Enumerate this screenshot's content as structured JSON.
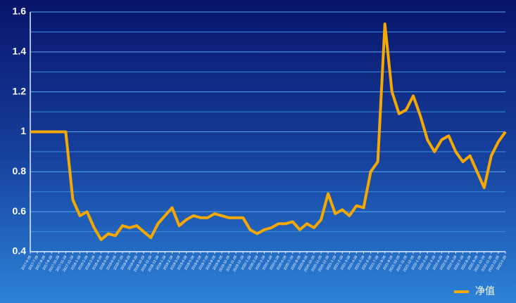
{
  "chart_data": {
    "type": "line",
    "x": [
      "2017-6-28",
      "2017-7-28",
      "2017-8-28",
      "2017-9-28",
      "2017-10-28",
      "2017-11-28",
      "2017-12-28",
      "2018-1-28",
      "2018-2-28",
      "2018-3-28",
      "2018-4-28",
      "2018-5-28",
      "2018-6-28",
      "2018-7-28",
      "2018-8-28",
      "2018-9-28",
      "2018-10-28",
      "2018-11-28",
      "2018-12-28",
      "2019-1-28",
      "2019-2-28",
      "2019-3-28",
      "2019-4-28",
      "2019-5-28",
      "2019-6-28",
      "2019-7-28",
      "2019-8-28",
      "2019-9-28",
      "2019-10-28",
      "2019-11-28",
      "2019-12-28",
      "2020-1-28",
      "2020-2-28",
      "2020-3-28",
      "2020-4-28",
      "2020-5-28",
      "2020-6-28",
      "2020-7-28",
      "2020-8-28",
      "2020-9-28",
      "2020-10-28",
      "2020-11-28",
      "2020-12-28",
      "2021-1-28",
      "2021-2-28",
      "2021-3-28",
      "2021-4-28",
      "2021-5-28",
      "2021-6-28",
      "2021-7-28",
      "2021-8-28",
      "2021-9-28",
      "2021-10-28",
      "2021-11-28",
      "2021-12-28",
      "2022-1-28",
      "2022-2-28",
      "2022-3-28",
      "2022-4-28",
      "2022-5-28",
      "2022-6-28",
      "2022-7-28",
      "2022-8-28",
      "2022-9-28",
      "2022-10-28",
      "2022-11-28",
      "2022-12-28",
      "2023-1-28"
    ],
    "series": [
      {
        "name": "净值",
        "color": "#f5a800",
        "values": [
          1.0,
          1.0,
          1.0,
          1.0,
          1.0,
          1.0,
          0.66,
          0.58,
          0.6,
          0.52,
          0.46,
          0.49,
          0.48,
          0.53,
          0.52,
          0.53,
          0.5,
          0.47,
          0.54,
          0.58,
          0.62,
          0.53,
          0.56,
          0.58,
          0.57,
          0.57,
          0.59,
          0.58,
          0.57,
          0.57,
          0.57,
          0.51,
          0.49,
          0.51,
          0.52,
          0.54,
          0.54,
          0.55,
          0.51,
          0.54,
          0.52,
          0.56,
          0.69,
          0.59,
          0.61,
          0.58,
          0.63,
          0.62,
          0.8,
          0.85,
          1.54,
          1.2,
          1.09,
          1.11,
          1.18,
          1.08,
          0.96,
          0.9,
          0.96,
          0.98,
          0.9,
          0.85,
          0.88,
          0.8,
          0.72,
          0.88,
          0.95,
          1.0
        ]
      }
    ],
    "ylim": [
      0.4,
      1.6
    ],
    "yticks": [
      0.4,
      0.6,
      0.8,
      1,
      1.2,
      1.4,
      1.6
    ],
    "minor_yticks": [
      0.5,
      0.7,
      0.9,
      1.1,
      1.3,
      1.5
    ],
    "grid": true,
    "legend": "bottom-right"
  }
}
